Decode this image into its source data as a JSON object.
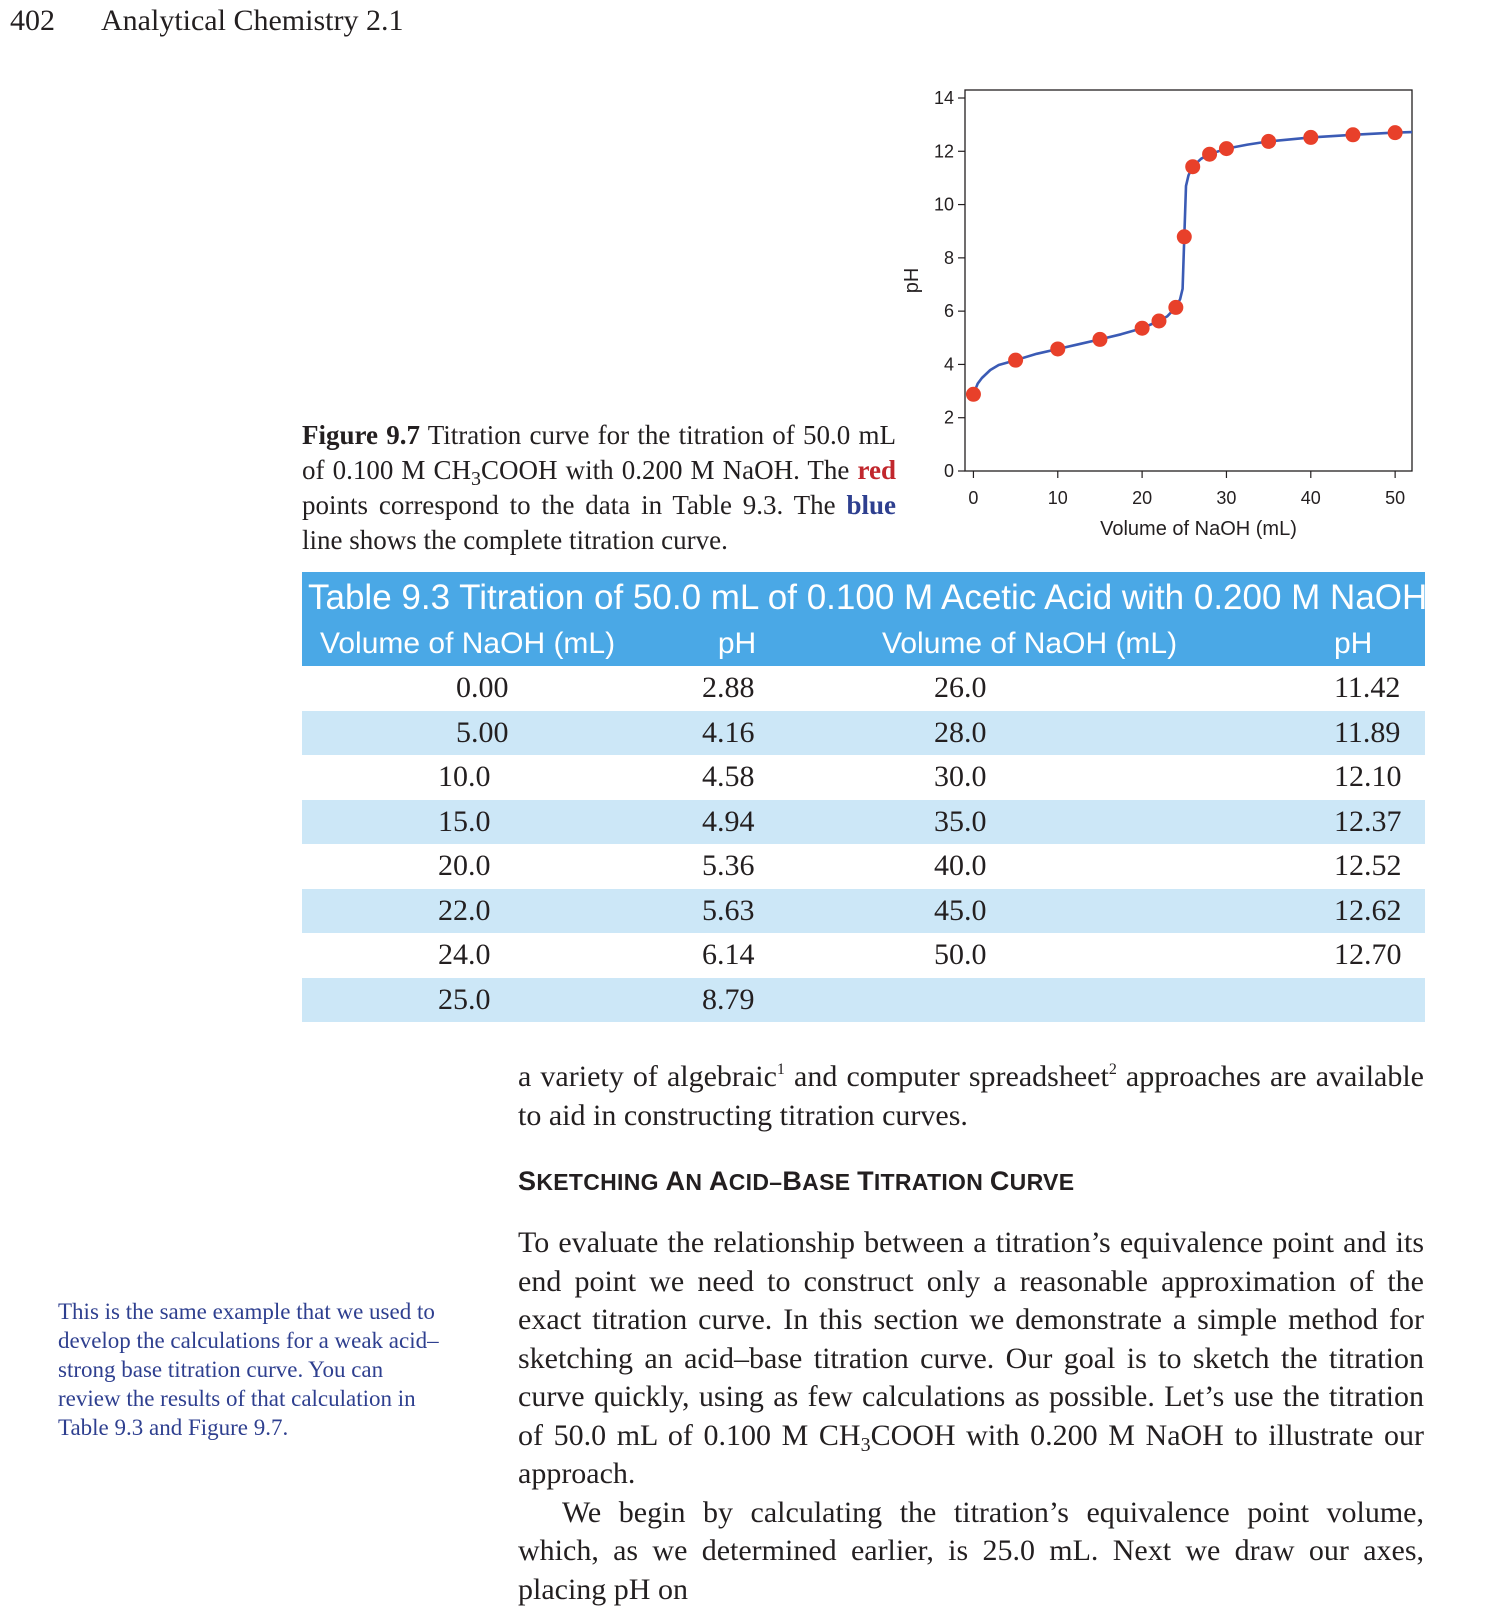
{
  "header": {
    "page_number": "402",
    "book_title": "Analytical Chemistry 2.1"
  },
  "figure": {
    "label": "Figure 9.7",
    "caption_part1": " Titration curve for the titration of 50.0 mL of 0.100 M CH",
    "caption_sub": "3",
    "caption_part2": "COOH with 0.200 M NaOH. The ",
    "caption_red": "red",
    "caption_part3": " points correspond to the data in Table 9.3. The ",
    "caption_blue": "blue",
    "caption_part4": " line shows the complete titration curve."
  },
  "chart_data": {
    "type": "scatter",
    "xlabel": "Volume of NaOH (mL)",
    "ylabel": "pH",
    "xlim": [
      -1,
      52
    ],
    "ylim": [
      0,
      14
    ],
    "x_ticks": [
      0,
      10,
      20,
      30,
      40,
      50
    ],
    "y_ticks": [
      0,
      2,
      4,
      6,
      8,
      10,
      12,
      14
    ],
    "grid": false,
    "point_color": "#e8402a",
    "line_color": "#3b5bb5",
    "points": {
      "x": [
        0,
        5,
        10,
        15,
        20,
        22,
        24,
        25,
        26,
        28,
        30,
        35,
        40,
        45,
        50
      ],
      "y": [
        2.88,
        4.16,
        4.58,
        4.94,
        5.36,
        5.63,
        6.14,
        8.79,
        11.42,
        11.89,
        12.1,
        12.37,
        12.52,
        12.62,
        12.7
      ]
    },
    "curve": {
      "x": [
        0,
        0.5,
        1,
        2,
        3,
        5,
        7.5,
        10,
        12.5,
        15,
        17.5,
        20,
        22,
        23,
        24,
        24.5,
        24.8,
        25,
        25.2,
        25.5,
        26,
        27,
        28,
        30,
        32.5,
        35,
        40,
        45,
        50,
        52
      ],
      "y": [
        2.88,
        3.28,
        3.49,
        3.79,
        3.98,
        4.16,
        4.4,
        4.58,
        4.76,
        4.94,
        5.13,
        5.36,
        5.63,
        5.81,
        6.14,
        6.45,
        6.84,
        8.79,
        10.7,
        11.1,
        11.42,
        11.72,
        11.89,
        12.1,
        12.25,
        12.37,
        12.52,
        12.62,
        12.7,
        12.72
      ]
    }
  },
  "table": {
    "title": "Table 9.3 Titration of 50.0 mL of 0.100 M Acetic Acid with 0.200 M NaOH",
    "headers": [
      "Volume of NaOH (mL)",
      "pH",
      "Volume of NaOH (mL)",
      "pH"
    ],
    "rows": [
      [
        "0.00",
        "2.88",
        "26.0",
        "11.42"
      ],
      [
        "5.00",
        "4.16",
        "28.0",
        "11.89"
      ],
      [
        "10.0",
        "4.58",
        "30.0",
        "12.10"
      ],
      [
        "15.0",
        "4.94",
        "35.0",
        "12.37"
      ],
      [
        "20.0",
        "5.36",
        "40.0",
        "12.52"
      ],
      [
        "22.0",
        "5.63",
        "45.0",
        "12.62"
      ],
      [
        "24.0",
        "6.14",
        "50.0",
        "12.70"
      ],
      [
        "25.0",
        "8.79",
        "",
        ""
      ]
    ]
  },
  "body": {
    "intro_a": "a variety of algebraic",
    "intro_sup1": "1",
    "intro_b": " and computer spreadsheet",
    "intro_sup2": "2",
    "intro_c": " approaches are available to aid in constructing titration curves.",
    "heading_s1": "S",
    "heading_w1": "KETCHING ",
    "heading_s2": "A",
    "heading_w2": "N ",
    "heading_s3": "A",
    "heading_w3": "CID–",
    "heading_s4": "B",
    "heading_w4": "ASE ",
    "heading_s5": "T",
    "heading_w5": "ITRATION ",
    "heading_s6": "C",
    "heading_w6": "URVE",
    "para1_a": "To evaluate the relationship between a titration’s equivalence point and its end point we need to construct only a reasonable approximation of the exact titration curve. In this section we demonstrate a simple method for sketching an acid–base titration curve. Our goal is to sketch the titration curve quickly, using as few calculations as possible. Let’s use the titration of 50.0 mL of 0.100 M CH",
    "para1_sub": "3",
    "para1_b": "COOH with 0.200 M NaOH to illustrate our approach.",
    "para2": "We begin by calculating the titration’s equivalence point volume, which, as we determined earlier, is 25.0 mL. Next we draw our axes, placing pH on"
  },
  "sidenote": "This is the same example that we used to develop the calculations for a weak acid–strong base titration curve. You can review the results of that calculation in Table 9.3 and Figure 9.7."
}
